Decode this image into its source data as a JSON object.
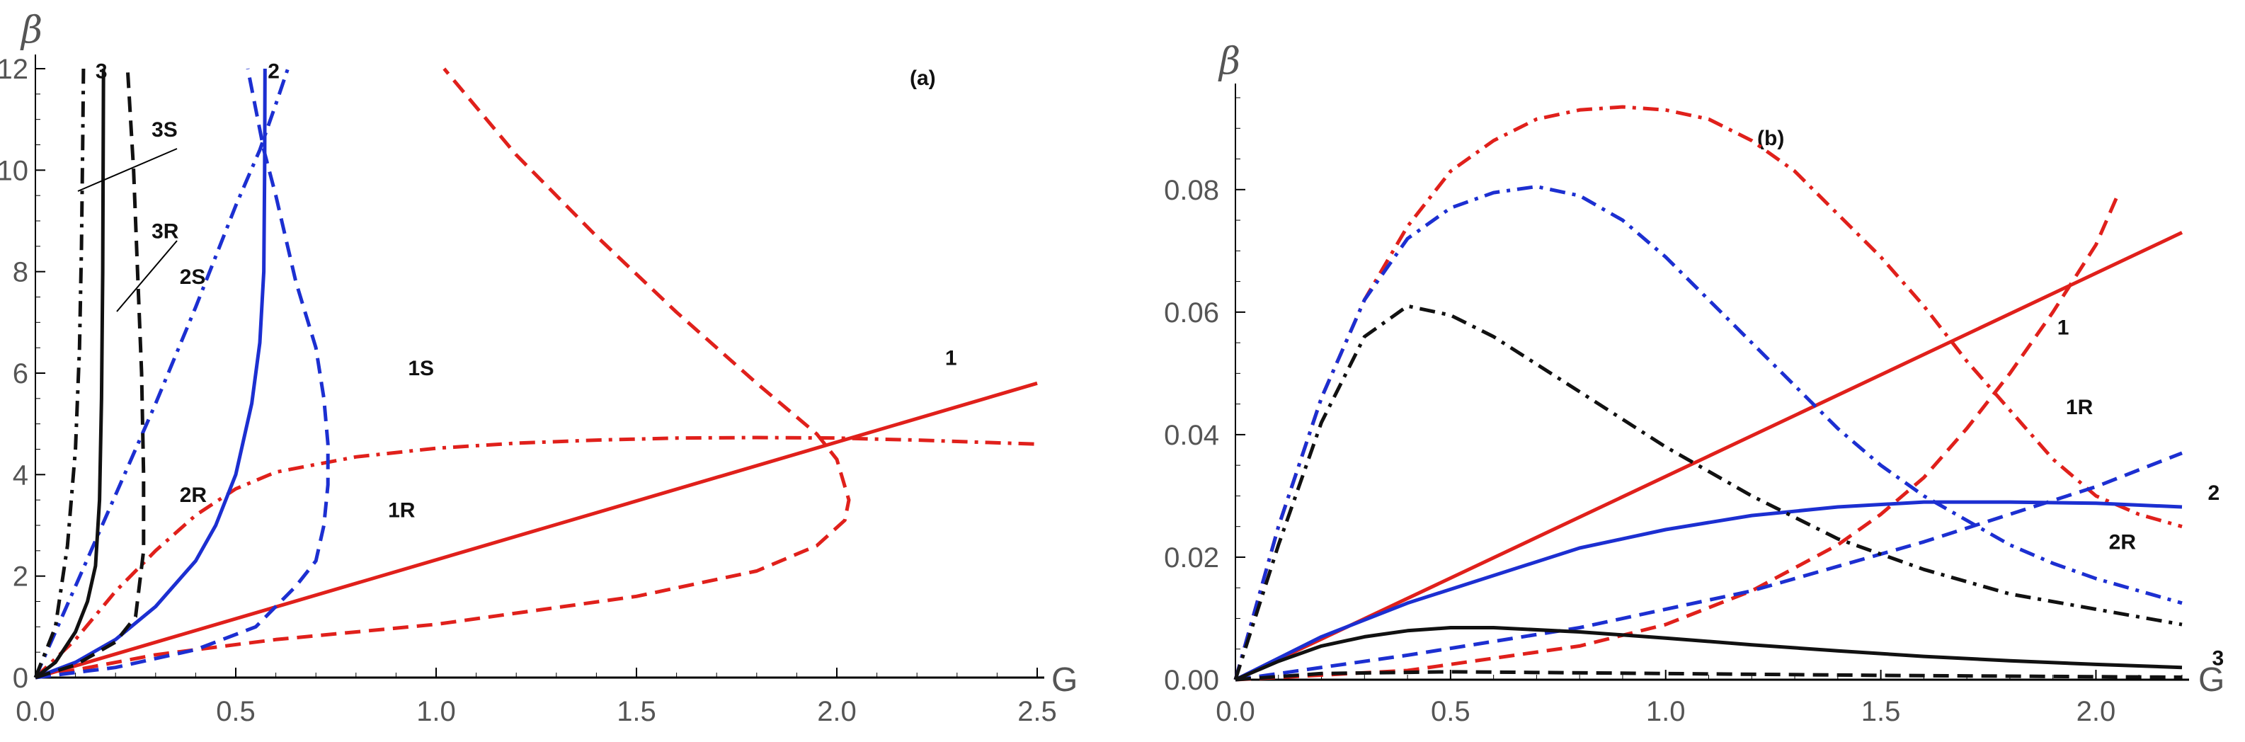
{
  "chart_data": [
    {
      "type": "line",
      "panel_label": "(a)",
      "xlabel": "G",
      "ylabel": "β",
      "xlim": [
        0,
        2.5
      ],
      "ylim": [
        0,
        12
      ],
      "x_ticks": [
        "0.0",
        "0.5",
        "1.0",
        "1.5",
        "2.0",
        "2.5"
      ],
      "y_ticks": [
        "0",
        "2",
        "4",
        "6",
        "8",
        "10",
        "12"
      ],
      "colors": {
        "red": "#e0201b",
        "blue": "#1c2fd1",
        "black": "#111111"
      },
      "series": [
        {
          "color": "red",
          "dash": "solid",
          "points": [
            [
              0,
              0
            ],
            [
              2.5,
              5.8
            ]
          ]
        },
        {
          "color": "red",
          "dash": "dashdot",
          "points": [
            [
              0,
              0
            ],
            [
              0.1,
              0.75
            ],
            [
              0.2,
              1.7
            ],
            [
              0.3,
              2.5
            ],
            [
              0.4,
              3.2
            ],
            [
              0.5,
              3.72
            ],
            [
              0.6,
              4.05
            ],
            [
              0.8,
              4.35
            ],
            [
              1.0,
              4.52
            ],
            [
              1.2,
              4.62
            ],
            [
              1.4,
              4.68
            ],
            [
              1.6,
              4.72
            ],
            [
              1.8,
              4.73
            ],
            [
              2.0,
              4.72
            ],
            [
              2.2,
              4.68
            ],
            [
              2.5,
              4.6
            ]
          ]
        },
        {
          "color": "red",
          "dash": "dashed",
          "points": [
            [
              0,
              0
            ],
            [
              0.3,
              0.45
            ],
            [
              0.6,
              0.75
            ],
            [
              1.0,
              1.05
            ],
            [
              1.5,
              1.6
            ],
            [
              1.8,
              2.1
            ],
            [
              1.95,
              2.6
            ],
            [
              2.02,
              3.1
            ],
            [
              2.03,
              3.5
            ],
            [
              2.0,
              4.3
            ],
            [
              1.95,
              4.8
            ],
            [
              1.8,
              5.8
            ],
            [
              1.6,
              7.2
            ],
            [
              1.4,
              8.7
            ],
            [
              1.2,
              10.3
            ],
            [
              1.02,
              12.0
            ]
          ]
        },
        {
          "color": "blue",
          "dash": "solid",
          "points": [
            [
              0,
              0
            ],
            [
              0.1,
              0.3
            ],
            [
              0.2,
              0.75
            ],
            [
              0.3,
              1.4
            ],
            [
              0.4,
              2.3
            ],
            [
              0.45,
              3.0
            ],
            [
              0.5,
              4.0
            ],
            [
              0.54,
              5.4
            ],
            [
              0.56,
              6.6
            ],
            [
              0.57,
              8.0
            ],
            [
              0.572,
              10.0
            ],
            [
              0.573,
              12.0
            ]
          ]
        },
        {
          "color": "blue",
          "dash": "dashdot",
          "points": [
            [
              0,
              0
            ],
            [
              0.1,
              1.8
            ],
            [
              0.2,
              3.6
            ],
            [
              0.3,
              5.4
            ],
            [
              0.4,
              7.3
            ],
            [
              0.5,
              9.3
            ],
            [
              0.56,
              10.4
            ],
            [
              0.6,
              11.3
            ],
            [
              0.63,
              12.0
            ]
          ]
        },
        {
          "color": "blue",
          "dash": "dashed",
          "points": [
            [
              0,
              0
            ],
            [
              0.2,
              0.2
            ],
            [
              0.4,
              0.55
            ],
            [
              0.55,
              1.0
            ],
            [
              0.65,
              1.8
            ],
            [
              0.7,
              2.3
            ],
            [
              0.72,
              3.0
            ],
            [
              0.73,
              3.8
            ],
            [
              0.73,
              4.6
            ],
            [
              0.72,
              5.5
            ],
            [
              0.7,
              6.5
            ],
            [
              0.65,
              7.8
            ],
            [
              0.6,
              9.5
            ],
            [
              0.57,
              10.4
            ],
            [
              0.55,
              11.2
            ],
            [
              0.53,
              12.0
            ]
          ]
        },
        {
          "color": "black",
          "dash": "solid",
          "points": [
            [
              0,
              0
            ],
            [
              0.05,
              0.3
            ],
            [
              0.1,
              0.9
            ],
            [
              0.13,
              1.5
            ],
            [
              0.15,
              2.2
            ],
            [
              0.16,
              3.5
            ],
            [
              0.165,
              5.5
            ],
            [
              0.168,
              8.0
            ],
            [
              0.17,
              12.0
            ]
          ]
        },
        {
          "color": "black",
          "dash": "dashdot",
          "points": [
            [
              0,
              0
            ],
            [
              0.05,
              1.0
            ],
            [
              0.08,
              2.6
            ],
            [
              0.1,
              4.5
            ],
            [
              0.11,
              6.5
            ],
            [
              0.115,
              8.5
            ],
            [
              0.118,
              10.5
            ],
            [
              0.12,
              12.0
            ]
          ]
        },
        {
          "color": "black",
          "dash": "dashed",
          "points": [
            [
              0,
              0
            ],
            [
              0.1,
              0.25
            ],
            [
              0.2,
              0.7
            ],
            [
              0.25,
              1.2
            ],
            [
              0.27,
              2.5
            ],
            [
              0.27,
              4.0
            ],
            [
              0.265,
              6.0
            ],
            [
              0.255,
              8.0
            ],
            [
              0.245,
              10.0
            ],
            [
              0.23,
              12.0
            ]
          ]
        }
      ],
      "annotations": [
        {
          "text": "3",
          "x": 0.15,
          "y": 11.95
        },
        {
          "text": "2",
          "x": 0.58,
          "y": 11.95
        },
        {
          "text": "3S",
          "x": 0.29,
          "y": 10.8
        },
        {
          "text": "3R",
          "x": 0.29,
          "y": 8.8
        },
        {
          "text": "2S",
          "x": 0.36,
          "y": 7.9
        },
        {
          "text": "1S",
          "x": 0.93,
          "y": 6.1
        },
        {
          "text": "1",
          "x": 2.27,
          "y": 6.3
        },
        {
          "text": "2R",
          "x": 0.36,
          "y": 3.6
        },
        {
          "text": "1R",
          "x": 0.88,
          "y": 3.3
        }
      ]
    },
    {
      "type": "line",
      "panel_label": "(b)",
      "xlabel": "G",
      "ylabel": "β",
      "xlim": [
        0,
        2.2
      ],
      "ylim": [
        0,
        0.095
      ],
      "x_ticks": [
        "0.0",
        "0.5",
        "1.0",
        "1.5",
        "2.0"
      ],
      "y_ticks": [
        "0.00",
        "0.02",
        "0.04",
        "0.06",
        "0.08"
      ],
      "colors": {
        "red": "#e0201b",
        "blue": "#1c2fd1",
        "black": "#111111"
      },
      "series": [
        {
          "color": "red",
          "dash": "solid",
          "points": [
            [
              0,
              0
            ],
            [
              2.2,
              0.073
            ]
          ]
        },
        {
          "color": "red",
          "dash": "dashdot",
          "points": [
            [
              0,
              0
            ],
            [
              0.1,
              0.025
            ],
            [
              0.2,
              0.046
            ],
            [
              0.3,
              0.062
            ],
            [
              0.4,
              0.074
            ],
            [
              0.5,
              0.083
            ],
            [
              0.6,
              0.088
            ],
            [
              0.7,
              0.0915
            ],
            [
              0.8,
              0.093
            ],
            [
              0.9,
              0.0935
            ],
            [
              1.0,
              0.093
            ],
            [
              1.1,
              0.0915
            ],
            [
              1.2,
              0.088
            ],
            [
              1.3,
              0.083
            ],
            [
              1.4,
              0.076
            ],
            [
              1.5,
              0.069
            ],
            [
              1.6,
              0.061
            ],
            [
              1.7,
              0.052
            ],
            [
              1.8,
              0.044
            ],
            [
              1.9,
              0.036
            ],
            [
              2.0,
              0.03
            ],
            [
              2.1,
              0.027
            ],
            [
              2.2,
              0.025
            ]
          ]
        },
        {
          "color": "red",
          "dash": "dashed",
          "points": [
            [
              0,
              0
            ],
            [
              0.4,
              0.0015
            ],
            [
              0.8,
              0.0055
            ],
            [
              1.0,
              0.009
            ],
            [
              1.2,
              0.0145
            ],
            [
              1.4,
              0.022
            ],
            [
              1.5,
              0.027
            ],
            [
              1.6,
              0.033
            ],
            [
              1.7,
              0.041
            ],
            [
              1.8,
              0.05
            ],
            [
              1.9,
              0.06
            ],
            [
              2.0,
              0.071
            ],
            [
              2.05,
              0.079
            ]
          ]
        },
        {
          "color": "blue",
          "dash": "solid",
          "points": [
            [
              0,
              0
            ],
            [
              0.2,
              0.007
            ],
            [
              0.4,
              0.0125
            ],
            [
              0.6,
              0.017
            ],
            [
              0.8,
              0.0215
            ],
            [
              1.0,
              0.0245
            ],
            [
              1.2,
              0.0268
            ],
            [
              1.4,
              0.0282
            ],
            [
              1.6,
              0.029
            ],
            [
              1.8,
              0.029
            ],
            [
              2.0,
              0.0288
            ],
            [
              2.2,
              0.0282
            ]
          ]
        },
        {
          "color": "blue",
          "dash": "dashdot",
          "points": [
            [
              0,
              0
            ],
            [
              0.1,
              0.025
            ],
            [
              0.2,
              0.046
            ],
            [
              0.3,
              0.062
            ],
            [
              0.4,
              0.072
            ],
            [
              0.5,
              0.077
            ],
            [
              0.6,
              0.0795
            ],
            [
              0.7,
              0.0805
            ],
            [
              0.8,
              0.079
            ],
            [
              0.9,
              0.075
            ],
            [
              1.0,
              0.069
            ],
            [
              1.1,
              0.062
            ],
            [
              1.2,
              0.055
            ],
            [
              1.3,
              0.048
            ],
            [
              1.4,
              0.041
            ],
            [
              1.5,
              0.035
            ],
            [
              1.6,
              0.03
            ],
            [
              1.7,
              0.026
            ],
            [
              1.8,
              0.022
            ],
            [
              1.9,
              0.019
            ],
            [
              2.0,
              0.0165
            ],
            [
              2.2,
              0.0125
            ]
          ]
        },
        {
          "color": "blue",
          "dash": "dashed",
          "points": [
            [
              0,
              0
            ],
            [
              0.4,
              0.004
            ],
            [
              0.8,
              0.0085
            ],
            [
              1.2,
              0.0145
            ],
            [
              1.6,
              0.0225
            ],
            [
              2.0,
              0.0315
            ],
            [
              2.2,
              0.037
            ]
          ]
        },
        {
          "color": "black",
          "dash": "solid",
          "points": [
            [
              0,
              0
            ],
            [
              0.1,
              0.003
            ],
            [
              0.2,
              0.0055
            ],
            [
              0.3,
              0.007
            ],
            [
              0.4,
              0.008
            ],
            [
              0.5,
              0.0085
            ],
            [
              0.6,
              0.0085
            ],
            [
              0.8,
              0.0078
            ],
            [
              1.0,
              0.0068
            ],
            [
              1.2,
              0.0057
            ],
            [
              1.4,
              0.0047
            ],
            [
              1.6,
              0.0038
            ],
            [
              1.8,
              0.0031
            ],
            [
              2.0,
              0.0025
            ],
            [
              2.2,
              0.002
            ]
          ]
        },
        {
          "color": "black",
          "dash": "dashdot",
          "points": [
            [
              0,
              0
            ],
            [
              0.1,
              0.022
            ],
            [
              0.2,
              0.042
            ],
            [
              0.3,
              0.056
            ],
            [
              0.4,
              0.061
            ],
            [
              0.5,
              0.0595
            ],
            [
              0.6,
              0.056
            ],
            [
              0.8,
              0.047
            ],
            [
              1.0,
              0.038
            ],
            [
              1.2,
              0.03
            ],
            [
              1.4,
              0.023
            ],
            [
              1.6,
              0.018
            ],
            [
              1.8,
              0.014
            ],
            [
              2.0,
              0.0115
            ],
            [
              2.2,
              0.009
            ]
          ]
        },
        {
          "color": "black",
          "dash": "dashed",
          "points": [
            [
              0,
              0
            ],
            [
              0.2,
              0.001
            ],
            [
              0.5,
              0.0013
            ],
            [
              1.0,
              0.001
            ],
            [
              1.5,
              0.0007
            ],
            [
              2.2,
              0.0004
            ]
          ]
        }
      ],
      "annotations": [
        {
          "text": "1",
          "x": 1.91,
          "y": 0.0575
        },
        {
          "text": "1R",
          "x": 1.93,
          "y": 0.0445
        },
        {
          "text": "2",
          "x": 2.26,
          "y": 0.0305
        },
        {
          "text": "2R",
          "x": 2.03,
          "y": 0.0225
        },
        {
          "text": "3",
          "x": 2.27,
          "y": 0.0035
        }
      ]
    }
  ]
}
